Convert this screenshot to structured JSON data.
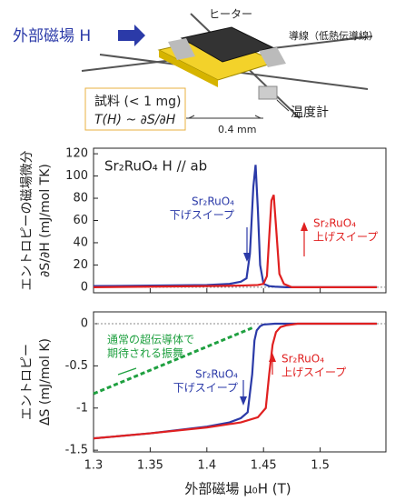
{
  "diagram": {
    "field_label": "外部磁場 H",
    "heater": "ヒーター",
    "wire": "導線（低熱伝導線）",
    "sample": "試料 (< 1 mg)",
    "formula": "T(H) ~ ∂S/∂H",
    "thermometer": "温度計",
    "scale": "0.4 mm"
  },
  "chart_data": [
    {
      "type": "line",
      "title": "Sr₂RuO₄   H // ab",
      "y_label": [
        "エントロピーの磁場微分",
        "∂S/∂H (mJ/mol TK)"
      ],
      "xlim": [
        1.3,
        1.558
      ],
      "ylim": [
        -5,
        125
      ],
      "yticks": [
        0,
        20,
        40,
        60,
        80,
        100,
        120
      ],
      "zero_line": true,
      "annotations": [
        [
          "Sr₂RuO₄",
          "下げスイープ"
        ],
        [
          "Sr₂RuO₄",
          "上げスイープ"
        ]
      ],
      "series": [
        {
          "color": "#2b3aa8",
          "x": [
            1.3,
            1.35,
            1.4,
            1.42,
            1.43,
            1.435,
            1.438,
            1.441,
            1.443,
            1.445,
            1.447,
            1.45,
            1.455,
            1.46,
            1.47,
            1.5,
            1.55
          ],
          "values": [
            1,
            1.5,
            2,
            3,
            5,
            8,
            30,
            90,
            110,
            70,
            20,
            3,
            1,
            0.5,
            0,
            0,
            0
          ]
        },
        {
          "color": "#e02020",
          "x": [
            1.3,
            1.35,
            1.4,
            1.43,
            1.445,
            1.45,
            1.453,
            1.455,
            1.457,
            1.459,
            1.461,
            1.464,
            1.468,
            1.475,
            1.5,
            1.55
          ],
          "values": [
            0,
            0.5,
            1,
            1.5,
            2,
            3,
            10,
            45,
            78,
            83,
            55,
            12,
            3,
            0,
            0,
            0
          ]
        }
      ]
    },
    {
      "type": "line",
      "y_label": [
        "エントロピー",
        "ΔS (mJ/mol K)"
      ],
      "x_label": "外部磁場 μ₀H (T)",
      "xlim": [
        1.3,
        1.558
      ],
      "ylim": [
        -1.52,
        0.14
      ],
      "xticks": [
        1.3,
        1.35,
        1.4,
        1.45,
        1.5
      ],
      "yticks": [
        0,
        -0.5,
        -1,
        -1.5
      ],
      "zero_line": true,
      "annotations": [
        [
          "通常の超伝導体で",
          "期待される振舞"
        ],
        [
          "Sr₂RuO₄",
          "下げスイープ"
        ],
        [
          "Sr₂RuO₄",
          "上げスイープ"
        ]
      ],
      "series": [
        {
          "color": "#1fa040",
          "style": "dashed",
          "x": [
            1.3,
            1.44
          ],
          "values": [
            -0.83,
            -0.05
          ]
        },
        {
          "color": "#2b3aa8",
          "x": [
            1.3,
            1.35,
            1.4,
            1.42,
            1.43,
            1.436,
            1.44,
            1.442,
            1.444,
            1.447,
            1.45,
            1.46,
            1.5,
            1.55
          ],
          "values": [
            -1.36,
            -1.3,
            -1.22,
            -1.17,
            -1.12,
            -1.05,
            -0.6,
            -0.2,
            -0.08,
            -0.03,
            -0.01,
            0,
            0,
            0
          ]
        },
        {
          "color": "#e02020",
          "x": [
            1.3,
            1.35,
            1.4,
            1.43,
            1.445,
            1.452,
            1.455,
            1.458,
            1.461,
            1.465,
            1.47,
            1.48,
            1.5,
            1.55
          ],
          "values": [
            -1.36,
            -1.3,
            -1.23,
            -1.17,
            -1.11,
            -1.0,
            -0.6,
            -0.25,
            -0.1,
            -0.04,
            -0.02,
            0,
            0,
            0
          ]
        }
      ]
    }
  ]
}
